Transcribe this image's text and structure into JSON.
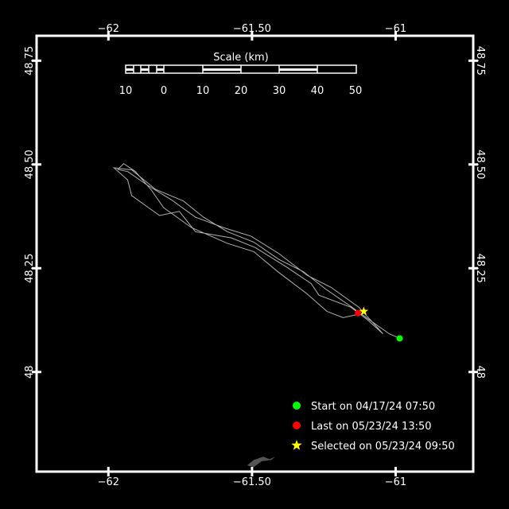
{
  "map": {
    "lon_range": [
      -62.25,
      -60.73
    ],
    "lat_range": [
      47.76,
      48.81
    ],
    "background": "#000000",
    "frame_color": "#ffffff",
    "track_color": "#b0b0b0",
    "land_color": "#555555",
    "lon_ticks": [
      {
        "value": -62,
        "label": "−62"
      },
      {
        "value": -61.5,
        "label": "−61.50"
      },
      {
        "value": -61,
        "label": "−61"
      }
    ],
    "lat_ticks": [
      {
        "value": 48.75,
        "label": "48.75"
      },
      {
        "value": 48.5,
        "label": "48.50"
      },
      {
        "value": 48.25,
        "label": "48.25"
      },
      {
        "value": 48,
        "label": "48"
      }
    ]
  },
  "scale": {
    "title": "Scale (km)",
    "labels": [
      "10",
      "0",
      "10",
      "20",
      "30",
      "40",
      "50"
    ]
  },
  "track": [
    [
      -60.986,
      48.081
    ],
    [
      -61.022,
      48.092
    ],
    [
      -61.086,
      48.123
    ],
    [
      -61.156,
      48.158
    ],
    [
      -61.244,
      48.2
    ],
    [
      -61.322,
      48.242
    ],
    [
      -61.406,
      48.271
    ],
    [
      -61.494,
      48.313
    ],
    [
      -61.586,
      48.338
    ],
    [
      -61.669,
      48.373
    ],
    [
      -61.739,
      48.412
    ],
    [
      -61.836,
      48.44
    ],
    [
      -61.919,
      48.487
    ],
    [
      -61.981,
      48.492
    ],
    [
      -61.933,
      48.463
    ],
    [
      -61.919,
      48.425
    ],
    [
      -61.822,
      48.377
    ],
    [
      -61.753,
      48.387
    ],
    [
      -61.697,
      48.338
    ],
    [
      -61.572,
      48.323
    ],
    [
      -61.489,
      48.3
    ],
    [
      -61.378,
      48.252
    ],
    [
      -61.294,
      48.213
    ],
    [
      -61.267,
      48.185
    ],
    [
      -61.156,
      48.156
    ],
    [
      -61.1,
      48.127
    ],
    [
      -61.044,
      48.092
    ],
    [
      -61.128,
      48.156
    ],
    [
      -61.225,
      48.204
    ],
    [
      -61.308,
      48.233
    ],
    [
      -61.406,
      48.285
    ],
    [
      -61.503,
      48.327
    ],
    [
      -61.6,
      48.348
    ],
    [
      -61.697,
      48.373
    ],
    [
      -61.781,
      48.415
    ],
    [
      -61.864,
      48.45
    ],
    [
      -61.933,
      48.483
    ],
    [
      -61.967,
      48.488
    ],
    [
      -61.947,
      48.502
    ],
    [
      -61.906,
      48.483
    ],
    [
      -61.85,
      48.438
    ],
    [
      -61.808,
      48.396
    ],
    [
      -61.711,
      48.348
    ],
    [
      -61.586,
      48.31
    ],
    [
      -61.494,
      48.29
    ],
    [
      -61.411,
      48.242
    ],
    [
      -61.308,
      48.188
    ],
    [
      -61.239,
      48.146
    ],
    [
      -61.183,
      48.131
    ],
    [
      -61.122,
      48.14
    ],
    [
      -61.131,
      48.142
    ]
  ],
  "land": [
    [
      -61.517,
      47.775
    ],
    [
      -61.494,
      47.788
    ],
    [
      -61.461,
      47.796
    ],
    [
      -61.439,
      47.79
    ],
    [
      -61.419,
      47.796
    ],
    [
      -61.433,
      47.788
    ],
    [
      -61.467,
      47.785
    ],
    [
      -61.494,
      47.771
    ]
  ],
  "markers": {
    "start": {
      "lon": -60.986,
      "lat": 48.081,
      "color": "#00ff00"
    },
    "last": {
      "lon": -61.131,
      "lat": 48.142,
      "color": "#ff0000"
    },
    "selected": {
      "lon": -61.111,
      "lat": 48.146,
      "color": "#ffff00"
    }
  },
  "legend": {
    "start": "Start on 04/17/24 07:50",
    "last": "Last on 05/23/24 13:50",
    "selected": "Selected on 05/23/24 09:50"
  }
}
